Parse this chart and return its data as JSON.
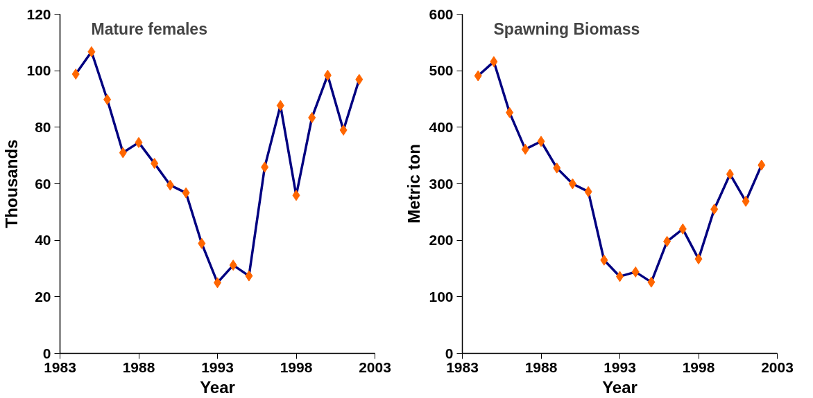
{
  "chart_data": [
    {
      "type": "line",
      "title": "Mature females",
      "xlabel": "Year",
      "ylabel": "Thousands",
      "x": [
        1984,
        1985,
        1986,
        1987,
        1988,
        1989,
        1990,
        1991,
        1992,
        1993,
        1994,
        1995,
        1996,
        1997,
        1998,
        1999,
        2000,
        2001,
        2002
      ],
      "series": [
        {
          "color": "#000080",
          "colors": [
            "#ff6600",
            "#ff6600",
            "#ff6600",
            "#ff6600",
            "#ff6600",
            "#ff6600",
            "#ff6600",
            "#ff6600",
            "#ff6600",
            "#ff6600",
            "#ff6600",
            "#ff6600",
            "#ff6600",
            "#ff6600",
            "#ff6600",
            "#ff6600",
            "#ff6600",
            "#ff6600",
            "#ff6600"
          ],
          "values": [
            98.8,
            106.7,
            89.8,
            71,
            74.6,
            67.2,
            59.5,
            56.8,
            38.9,
            25,
            31.2,
            27.4,
            65.9,
            87.7,
            55.9,
            83.4,
            98.4,
            79,
            96.9
          ]
        }
      ],
      "xlim": [
        1983,
        2003
      ],
      "xticks": [
        1983,
        1988,
        1993,
        1998,
        2003
      ],
      "ylim": [
        0,
        120
      ],
      "yticks": [
        0,
        20,
        40,
        60,
        80,
        100,
        120
      ],
      "marker": "diamond",
      "line_style": "solid"
    },
    {
      "type": "line",
      "title": "Spawning Biomass",
      "xlabel": "Year",
      "ylabel": "Metric ton",
      "x": [
        1984,
        1985,
        1986,
        1987,
        1988,
        1989,
        1990,
        1991,
        1992,
        1993,
        1994,
        1995,
        1996,
        1997,
        1998,
        1999,
        2000,
        2001,
        2002
      ],
      "series": [
        {
          "color": "#000080",
          "colors": [
            "#ff6600",
            "#ff6600",
            "#ff6600",
            "#ff6600",
            "#ff6600",
            "#ff6600",
            "#ff6600",
            "#ff6600",
            "#ff6600",
            "#ff6600",
            "#ff6600",
            "#ff6600",
            "#ff6600",
            "#ff6600",
            "#ff6600",
            "#ff6600",
            "#ff6600",
            "#ff6600",
            "#ff6600"
          ],
          "values": [
            491,
            516,
            426,
            361,
            375,
            328,
            300,
            286,
            165,
            136,
            144,
            126,
            198,
            220,
            167,
            255,
            317,
            269,
            333
          ]
        }
      ],
      "xlim": [
        1983,
        2003
      ],
      "xticks": [
        1983,
        1988,
        1993,
        1998,
        2003
      ],
      "ylim": [
        0,
        600
      ],
      "yticks": [
        0,
        100,
        200,
        300,
        400,
        500,
        600
      ],
      "marker": "diamond",
      "line_style": "solid"
    }
  ]
}
